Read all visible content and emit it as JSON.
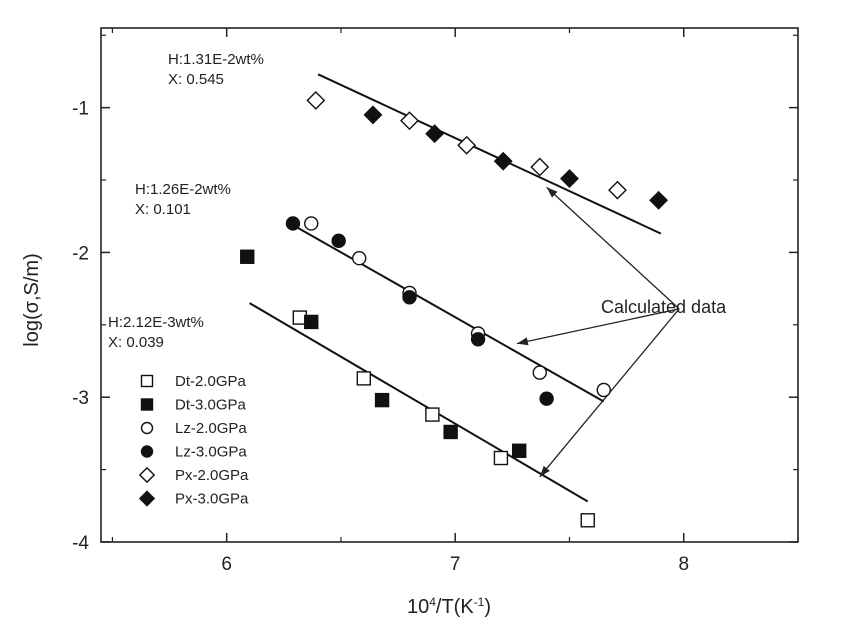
{
  "chart_data": {
    "type": "scatter",
    "xlabel_base": "10",
    "xlabel_sup": "4",
    "xlabel_mid": "/T(K",
    "xlabel_sup2": "-1",
    "xlabel_end": ")",
    "ylabel": "log(σ,S/m)",
    "xlim": [
      5.45,
      8.5
    ],
    "ylim": [
      -4.0,
      -0.45
    ],
    "xticks": [
      6,
      7,
      8
    ],
    "xtick_labels": [
      "6",
      "7",
      "8"
    ],
    "yticks": [
      -4,
      -3,
      -2,
      -1
    ],
    "ytick_labels": [
      "-4",
      "-3",
      "-2",
      "-1"
    ],
    "grid": false,
    "legend_position": "bottom-left",
    "series": [
      {
        "name": "Dt-2.0GPa",
        "marker": "square",
        "fill": "open",
        "points": [
          [
            6.32,
            -2.45
          ],
          [
            6.6,
            -2.87
          ],
          [
            6.9,
            -3.12
          ],
          [
            7.2,
            -3.42
          ],
          [
            7.58,
            -3.85
          ]
        ]
      },
      {
        "name": "Dt-3.0GPa",
        "marker": "square",
        "fill": "filled",
        "points": [
          [
            6.09,
            -2.03
          ],
          [
            6.37,
            -2.48
          ],
          [
            6.68,
            -3.02
          ],
          [
            6.98,
            -3.24
          ],
          [
            7.28,
            -3.37
          ]
        ]
      },
      {
        "name": "Lz-2.0GPa",
        "marker": "circle",
        "fill": "open",
        "points": [
          [
            6.37,
            -1.8
          ],
          [
            6.58,
            -2.04
          ],
          [
            6.8,
            -2.28
          ],
          [
            7.1,
            -2.56
          ],
          [
            7.37,
            -2.83
          ],
          [
            7.65,
            -2.95
          ]
        ]
      },
      {
        "name": "Lz-3.0GPa",
        "marker": "circle",
        "fill": "filled",
        "points": [
          [
            6.29,
            -1.8
          ],
          [
            6.49,
            -1.92
          ],
          [
            6.8,
            -2.31
          ],
          [
            7.1,
            -2.6
          ],
          [
            7.4,
            -3.01
          ]
        ]
      },
      {
        "name": "Px-2.0GPa",
        "marker": "diamond",
        "fill": "open",
        "points": [
          [
            6.39,
            -0.95
          ],
          [
            6.8,
            -1.09
          ],
          [
            7.05,
            -1.26
          ],
          [
            7.37,
            -1.41
          ],
          [
            7.71,
            -1.57
          ]
        ]
      },
      {
        "name": "Px-3.0GPa",
        "marker": "diamond",
        "fill": "filled",
        "points": [
          [
            6.64,
            -1.05
          ],
          [
            6.91,
            -1.18
          ],
          [
            7.21,
            -1.37
          ],
          [
            7.5,
            -1.49
          ],
          [
            7.89,
            -1.64
          ]
        ]
      }
    ],
    "fit_lines": [
      {
        "x": [
          6.4,
          7.9
        ],
        "y": [
          -0.77,
          -1.87
        ]
      },
      {
        "x": [
          6.3,
          7.65
        ],
        "y": [
          -1.82,
          -3.03
        ]
      },
      {
        "x": [
          6.1,
          7.58
        ],
        "y": [
          -2.35,
          -3.72
        ]
      }
    ],
    "annotations": [
      {
        "line1": "H:1.31E-2wt%",
        "line2": "X: 0.545"
      },
      {
        "line1": "H:1.26E-2wt%",
        "line2": "X: 0.101"
      },
      {
        "line1": "H:2.12E-3wt%",
        "line2": "X: 0.039"
      }
    ],
    "callout": {
      "text": "Calculated data",
      "anchor": [
        7.98,
        -2.39
      ],
      "targets": [
        [
          7.4,
          -1.55
        ],
        [
          7.27,
          -2.63
        ],
        [
          7.37,
          -3.55
        ]
      ]
    }
  }
}
